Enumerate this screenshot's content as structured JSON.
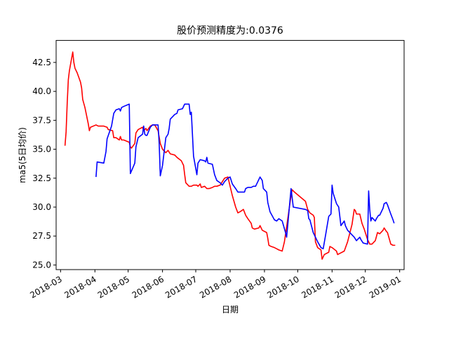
{
  "chart_data": {
    "type": "line",
    "title": "股价预测精度为:0.0376",
    "xlabel": "日期",
    "ylabel": "ma5(5日均价)",
    "xlim": [
      "2018-02-25",
      "2019-01-05"
    ],
    "ylim": [
      24.6,
      44.4
    ],
    "grid": false,
    "x_ticks": [
      "2018-03",
      "2018-04",
      "2018-05",
      "2018-06",
      "2018-07",
      "2018-08",
      "2018-09",
      "2018-10",
      "2018-11",
      "2018-12",
      "2019-01"
    ],
    "y_ticks": [
      "25.0",
      "27.5",
      "30.0",
      "32.5",
      "35.0",
      "37.5",
      "40.0",
      "42.5"
    ],
    "series": [
      {
        "color": "#ff0000",
        "points": [
          [
            "2018-03-05",
            35.3
          ],
          [
            "2018-03-06",
            36.5
          ],
          [
            "2018-03-07",
            39.0
          ],
          [
            "2018-03-08",
            41.0
          ],
          [
            "2018-03-09",
            41.8
          ],
          [
            "2018-03-12",
            43.4
          ],
          [
            "2018-03-13",
            42.5
          ],
          [
            "2018-03-14",
            42.0
          ],
          [
            "2018-03-16",
            41.6
          ],
          [
            "2018-03-19",
            40.8
          ],
          [
            "2018-03-20",
            40.3
          ],
          [
            "2018-03-21",
            39.3
          ],
          [
            "2018-03-23",
            38.6
          ],
          [
            "2018-03-26",
            37.2
          ],
          [
            "2018-03-27",
            36.6
          ],
          [
            "2018-03-28",
            36.9
          ],
          [
            "2018-04-02",
            37.1
          ],
          [
            "2018-04-04",
            37.0
          ],
          [
            "2018-04-09",
            37.0
          ],
          [
            "2018-04-12",
            36.9
          ],
          [
            "2018-04-13",
            36.7
          ],
          [
            "2018-04-17",
            36.6
          ],
          [
            "2018-04-18",
            36.0
          ],
          [
            "2018-04-20",
            36.0
          ],
          [
            "2018-04-23",
            35.8
          ],
          [
            "2018-04-24",
            36.1
          ],
          [
            "2018-04-25",
            35.8
          ],
          [
            "2018-04-27",
            35.8
          ],
          [
            "2018-05-02",
            35.6
          ],
          [
            "2018-05-03",
            35.2
          ],
          [
            "2018-05-04",
            35.1
          ],
          [
            "2018-05-07",
            35.5
          ],
          [
            "2018-05-08",
            36.4
          ],
          [
            "2018-05-10",
            36.7
          ],
          [
            "2018-05-14",
            36.9
          ],
          [
            "2018-05-15",
            36.6
          ],
          [
            "2018-05-17",
            36.8
          ],
          [
            "2018-05-18",
            36.6
          ],
          [
            "2018-05-21",
            37.0
          ],
          [
            "2018-05-23",
            37.1
          ],
          [
            "2018-05-25",
            37.1
          ],
          [
            "2018-05-28",
            36.6
          ],
          [
            "2018-05-30",
            35.5
          ],
          [
            "2018-06-01",
            35.0
          ],
          [
            "2018-06-04",
            34.7
          ],
          [
            "2018-06-06",
            34.9
          ],
          [
            "2018-06-08",
            34.6
          ],
          [
            "2018-06-12",
            34.5
          ],
          [
            "2018-06-14",
            34.3
          ],
          [
            "2018-06-18",
            34.0
          ],
          [
            "2018-06-20",
            33.6
          ],
          [
            "2018-06-21",
            32.8
          ],
          [
            "2018-06-22",
            32.1
          ],
          [
            "2018-06-25",
            31.8
          ],
          [
            "2018-06-27",
            31.8
          ],
          [
            "2018-06-29",
            31.9
          ],
          [
            "2018-07-02",
            31.9
          ],
          [
            "2018-07-03",
            31.8
          ],
          [
            "2018-07-05",
            32.0
          ],
          [
            "2018-07-06",
            31.7
          ],
          [
            "2018-07-09",
            31.8
          ],
          [
            "2018-07-11",
            31.6
          ],
          [
            "2018-07-13",
            31.6
          ],
          [
            "2018-07-16",
            31.7
          ],
          [
            "2018-07-18",
            31.8
          ],
          [
            "2018-07-20",
            31.8
          ],
          [
            "2018-07-23",
            31.9
          ],
          [
            "2018-07-25",
            32.2
          ],
          [
            "2018-07-27",
            32.5
          ],
          [
            "2018-07-30",
            32.6
          ],
          [
            "2018-08-01",
            31.8
          ],
          [
            "2018-08-03",
            31.0
          ],
          [
            "2018-08-06",
            30.0
          ],
          [
            "2018-08-08",
            29.5
          ],
          [
            "2018-08-10",
            29.6
          ],
          [
            "2018-08-13",
            29.8
          ],
          [
            "2018-08-15",
            29.3
          ],
          [
            "2018-08-17",
            29.0
          ],
          [
            "2018-08-20",
            28.6
          ],
          [
            "2018-08-21",
            28.2
          ],
          [
            "2018-08-23",
            28.1
          ],
          [
            "2018-08-27",
            28.2
          ],
          [
            "2018-08-28",
            28.4
          ],
          [
            "2018-08-30",
            28.0
          ],
          [
            "2018-09-03",
            27.8
          ],
          [
            "2018-09-04",
            27.3
          ],
          [
            "2018-09-05",
            26.7
          ],
          [
            "2018-09-07",
            26.6
          ],
          [
            "2018-09-10",
            26.5
          ],
          [
            "2018-09-12",
            26.4
          ],
          [
            "2018-09-14",
            26.3
          ],
          [
            "2018-09-17",
            26.2
          ],
          [
            "2018-09-19",
            27.0
          ],
          [
            "2018-09-21",
            28.3
          ],
          [
            "2018-09-25",
            31.0
          ],
          [
            "2018-09-26",
            31.5
          ],
          [
            "2018-09-28",
            31.3
          ],
          [
            "2018-10-08",
            30.5
          ],
          [
            "2018-10-10",
            29.8
          ],
          [
            "2018-10-12",
            29.5
          ],
          [
            "2018-10-15",
            29.3
          ],
          [
            "2018-10-16",
            29.1
          ],
          [
            "2018-10-17",
            27.0
          ],
          [
            "2018-10-19",
            26.5
          ],
          [
            "2018-10-22",
            26.3
          ],
          [
            "2018-10-23",
            25.5
          ],
          [
            "2018-10-25",
            25.9
          ],
          [
            "2018-10-29",
            26.1
          ],
          [
            "2018-10-30",
            26.6
          ],
          [
            "2018-11-01",
            26.5
          ],
          [
            "2018-11-05",
            26.2
          ],
          [
            "2018-11-06",
            25.9
          ],
          [
            "2018-11-08",
            26.0
          ],
          [
            "2018-11-12",
            26.2
          ],
          [
            "2018-11-15",
            27.0
          ],
          [
            "2018-11-19",
            28.5
          ],
          [
            "2018-11-21",
            29.8
          ],
          [
            "2018-11-22",
            29.7
          ],
          [
            "2018-11-23",
            29.4
          ],
          [
            "2018-11-26",
            29.4
          ],
          [
            "2018-11-28",
            28.6
          ],
          [
            "2018-11-30",
            28.1
          ],
          [
            "2018-12-03",
            27.2
          ],
          [
            "2018-12-05",
            26.8
          ],
          [
            "2018-12-07",
            26.8
          ],
          [
            "2018-12-10",
            27.1
          ],
          [
            "2018-12-12",
            27.8
          ],
          [
            "2018-12-14",
            27.7
          ],
          [
            "2018-12-17",
            28.0
          ],
          [
            "2018-12-18",
            28.2
          ],
          [
            "2018-12-20",
            27.9
          ],
          [
            "2018-12-21",
            27.8
          ],
          [
            "2018-12-24",
            26.8
          ],
          [
            "2018-12-26",
            26.7
          ],
          [
            "2018-12-28",
            26.7
          ]
        ]
      },
      {
        "color": "#0000ff",
        "points": [
          [
            "2018-04-02",
            32.6
          ],
          [
            "2018-04-03",
            33.9
          ],
          [
            "2018-04-09",
            33.8
          ],
          [
            "2018-04-11",
            34.8
          ],
          [
            "2018-04-12",
            35.9
          ],
          [
            "2018-04-16",
            37.0
          ],
          [
            "2018-04-18",
            38.1
          ],
          [
            "2018-04-20",
            38.4
          ],
          [
            "2018-04-23",
            38.5
          ],
          [
            "2018-04-24",
            38.3
          ],
          [
            "2018-04-25",
            38.6
          ],
          [
            "2018-04-27",
            38.7
          ],
          [
            "2018-05-02",
            38.9
          ],
          [
            "2018-05-03",
            32.9
          ],
          [
            "2018-05-07",
            33.8
          ],
          [
            "2018-05-08",
            35.2
          ],
          [
            "2018-05-10",
            36.0
          ],
          [
            "2018-05-14",
            36.3
          ],
          [
            "2018-05-15",
            37.0
          ],
          [
            "2018-05-16",
            36.3
          ],
          [
            "2018-05-17",
            36.2
          ],
          [
            "2018-05-18",
            36.2
          ],
          [
            "2018-05-21",
            36.9
          ],
          [
            "2018-05-23",
            37.1
          ],
          [
            "2018-05-28",
            37.1
          ],
          [
            "2018-05-29",
            35.5
          ],
          [
            "2018-05-30",
            32.7
          ],
          [
            "2018-06-01",
            33.6
          ],
          [
            "2018-06-04",
            36.0
          ],
          [
            "2018-06-06",
            36.3
          ],
          [
            "2018-06-07",
            36.8
          ],
          [
            "2018-06-08",
            37.6
          ],
          [
            "2018-06-12",
            38.0
          ],
          [
            "2018-06-14",
            38.1
          ],
          [
            "2018-06-15",
            38.4
          ],
          [
            "2018-06-19",
            38.5
          ],
          [
            "2018-06-21",
            38.9
          ],
          [
            "2018-06-25",
            38.9
          ],
          [
            "2018-06-26",
            38.0
          ],
          [
            "2018-06-27",
            38.2
          ],
          [
            "2018-06-29",
            34.4
          ],
          [
            "2018-07-02",
            32.8
          ],
          [
            "2018-07-03",
            33.8
          ],
          [
            "2018-07-05",
            34.1
          ],
          [
            "2018-07-09",
            34.0
          ],
          [
            "2018-07-10",
            33.9
          ],
          [
            "2018-07-11",
            34.3
          ],
          [
            "2018-07-12",
            33.8
          ],
          [
            "2018-07-16",
            33.7
          ],
          [
            "2018-07-18",
            32.8
          ],
          [
            "2018-07-20",
            32.3
          ],
          [
            "2018-07-23",
            32.1
          ],
          [
            "2018-07-25",
            31.9
          ],
          [
            "2018-07-27",
            32.2
          ],
          [
            "2018-07-30",
            32.5
          ],
          [
            "2018-08-01",
            32.6
          ],
          [
            "2018-08-03",
            32.0
          ],
          [
            "2018-08-06",
            31.6
          ],
          [
            "2018-08-08",
            31.3
          ],
          [
            "2018-08-14",
            31.3
          ],
          [
            "2018-08-15",
            31.6
          ],
          [
            "2018-08-17",
            31.7
          ],
          [
            "2018-08-20",
            31.7
          ],
          [
            "2018-08-22",
            31.8
          ],
          [
            "2018-08-24",
            31.8
          ],
          [
            "2018-08-28",
            32.6
          ],
          [
            "2018-08-30",
            32.3
          ],
          [
            "2018-08-31",
            31.6
          ],
          [
            "2018-09-03",
            31.3
          ],
          [
            "2018-09-04",
            30.4
          ],
          [
            "2018-09-06",
            29.6
          ],
          [
            "2018-09-10",
            28.9
          ],
          [
            "2018-09-12",
            28.8
          ],
          [
            "2018-09-14",
            29.0
          ],
          [
            "2018-09-17",
            28.8
          ],
          [
            "2018-09-20",
            27.8
          ],
          [
            "2018-09-21",
            27.4
          ],
          [
            "2018-09-25",
            31.6
          ],
          [
            "2018-09-27",
            30.0
          ],
          [
            "2018-10-08",
            29.8
          ],
          [
            "2018-10-10",
            29.7
          ],
          [
            "2018-10-11",
            29.0
          ],
          [
            "2018-10-12",
            28.9
          ],
          [
            "2018-10-15",
            27.8
          ],
          [
            "2018-10-17",
            27.4
          ],
          [
            "2018-10-19",
            27.0
          ],
          [
            "2018-10-22",
            26.5
          ],
          [
            "2018-10-24",
            26.4
          ],
          [
            "2018-10-26",
            27.5
          ],
          [
            "2018-10-29",
            29.2
          ],
          [
            "2018-10-31",
            29.4
          ],
          [
            "2018-11-01",
            31.9
          ],
          [
            "2018-11-02",
            31.2
          ],
          [
            "2018-11-05",
            30.3
          ],
          [
            "2018-11-07",
            30.0
          ],
          [
            "2018-11-09",
            28.4
          ],
          [
            "2018-11-12",
            28.8
          ],
          [
            "2018-11-13",
            28.4
          ],
          [
            "2018-11-15",
            28.0
          ],
          [
            "2018-11-19",
            27.6
          ],
          [
            "2018-11-21",
            27.4
          ],
          [
            "2018-11-23",
            27.1
          ],
          [
            "2018-11-26",
            27.4
          ],
          [
            "2018-11-27",
            27.2
          ],
          [
            "2018-11-29",
            26.9
          ],
          [
            "2018-12-03",
            26.8
          ],
          [
            "2018-12-04",
            31.4
          ],
          [
            "2018-12-05",
            29.8
          ],
          [
            "2018-12-06",
            28.8
          ],
          [
            "2018-12-07",
            29.1
          ],
          [
            "2018-12-10",
            28.8
          ],
          [
            "2018-12-11",
            29.0
          ],
          [
            "2018-12-13",
            29.3
          ],
          [
            "2018-12-14",
            29.3
          ],
          [
            "2018-12-17",
            29.9
          ],
          [
            "2018-12-18",
            30.3
          ],
          [
            "2018-12-20",
            30.4
          ],
          [
            "2018-12-21",
            30.2
          ],
          [
            "2018-12-24",
            29.4
          ],
          [
            "2018-12-26",
            28.9
          ],
          [
            "2018-12-27",
            28.6
          ]
        ]
      }
    ]
  }
}
